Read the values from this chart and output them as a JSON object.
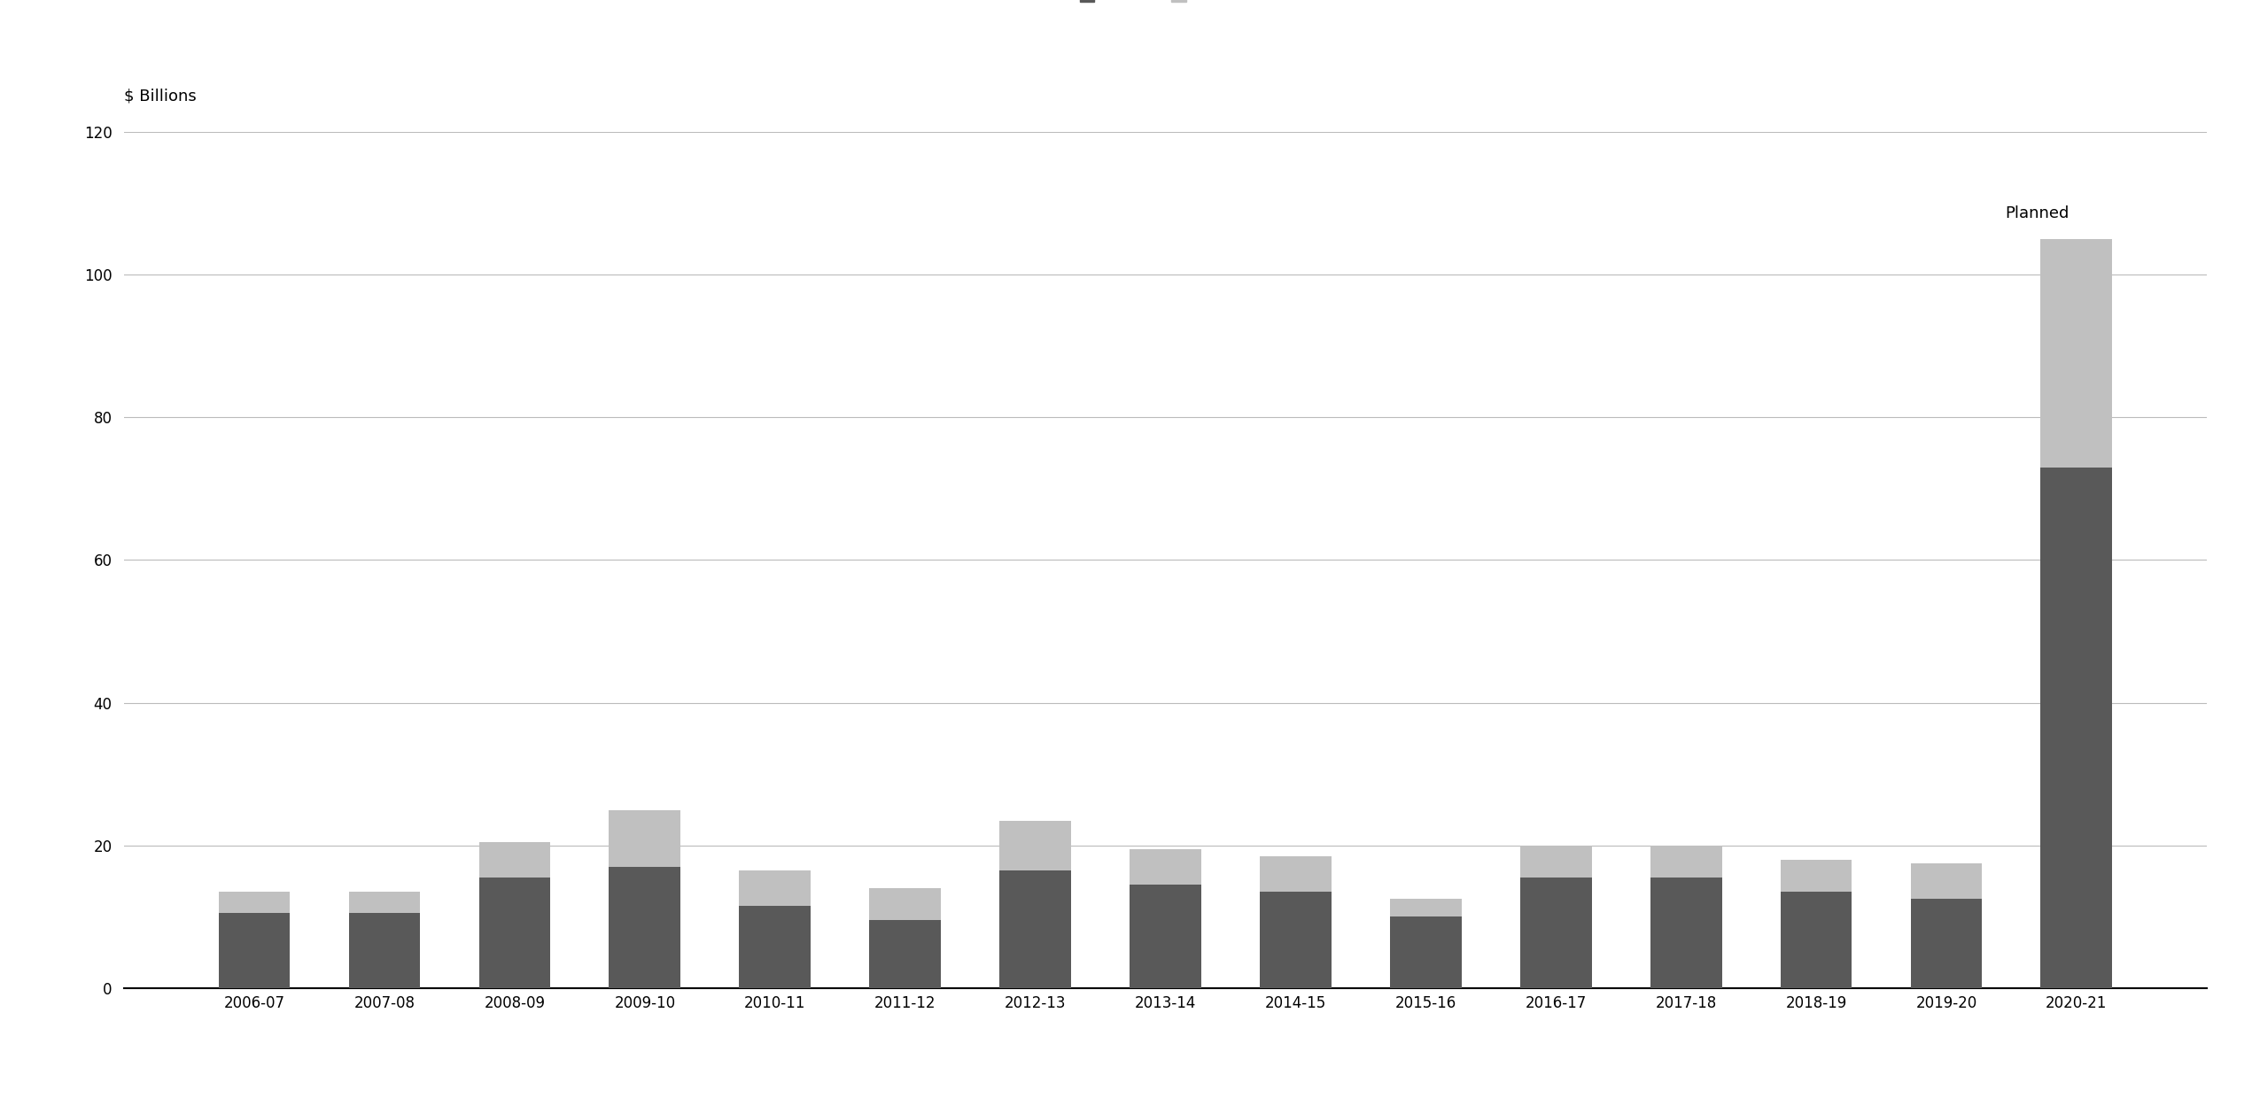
{
  "ylabel": "$ Billions",
  "categories": [
    "2006-07",
    "2007-08",
    "2008-09",
    "2009-10",
    "2010-11",
    "2011-12",
    "2012-13",
    "2013-14",
    "2014-15",
    "2015-16",
    "2016-17",
    "2017-18",
    "2018-19",
    "2019-20",
    "2020-21"
  ],
  "ten_year": [
    10.5,
    10.5,
    15.5,
    17.0,
    11.5,
    9.5,
    16.5,
    14.5,
    13.5,
    10.0,
    15.5,
    15.5,
    13.5,
    12.5,
    73.0
  ],
  "thirty_year": [
    3.0,
    3.0,
    5.0,
    8.0,
    5.0,
    4.5,
    7.0,
    5.0,
    5.0,
    2.5,
    4.5,
    4.5,
    4.5,
    5.0,
    32.0
  ],
  "color_10year": "#595959",
  "color_30year": "#c0c0c0",
  "ylim": [
    0,
    120
  ],
  "yticks": [
    0,
    20,
    40,
    60,
    80,
    100,
    120
  ],
  "planned_label": "Planned",
  "planned_index": 14,
  "background_color": "#ffffff",
  "grid_color": "#bbbbbb",
  "ylabel_fontsize": 13,
  "tick_fontsize": 12,
  "legend_fontsize": 12,
  "planned_fontsize": 13,
  "bar_width": 0.55
}
